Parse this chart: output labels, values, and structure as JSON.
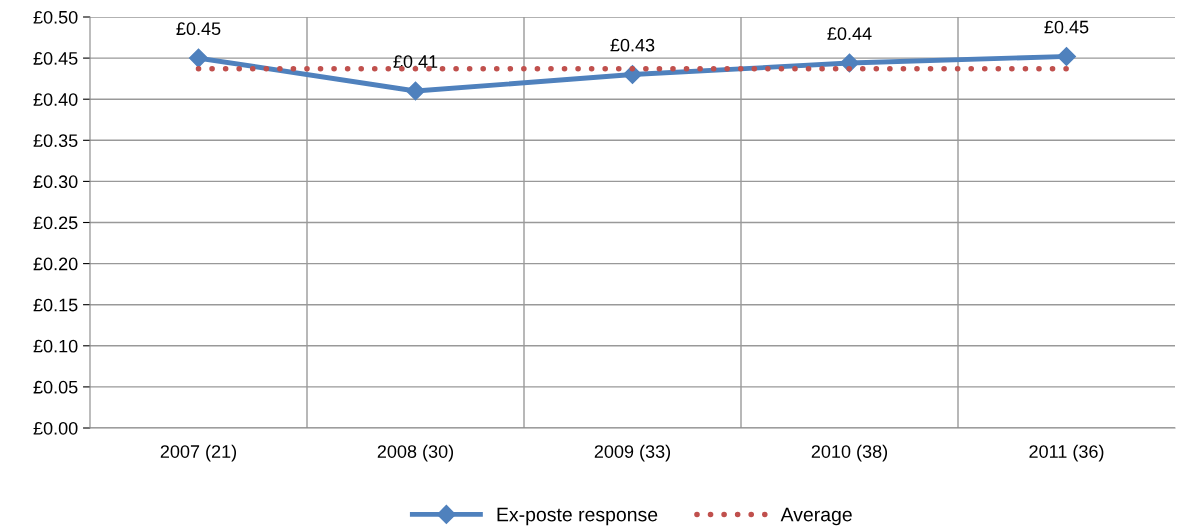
{
  "chart_data": {
    "type": "line",
    "categories": [
      "2007 (21)",
      "2008 (30)",
      "2009 (33)",
      "2010 (38)",
      "2011 (36)"
    ],
    "series": [
      {
        "name": "Ex-poste response",
        "color": "#4f81bd",
        "values": [
          0.45,
          0.41,
          0.43,
          0.444,
          0.452
        ],
        "value_labels": [
          "£0.45",
          "£0.41",
          "£0.43",
          "£0.44",
          "£0.45"
        ],
        "marker": "diamond",
        "line_style": "solid"
      },
      {
        "name": "Average",
        "color": "#c0504d",
        "values": [
          0.437,
          0.437,
          0.437,
          0.437,
          0.437
        ],
        "marker": "none",
        "line_style": "dotted"
      }
    ],
    "ylim": [
      0,
      0.5
    ],
    "yticks": [
      {
        "value": 0,
        "label": "£0.00"
      },
      {
        "value": 0.05,
        "label": "£0.05"
      },
      {
        "value": 0.1,
        "label": "£0.10"
      },
      {
        "value": 0.15,
        "label": "£0.15"
      },
      {
        "value": 0.2,
        "label": "£0.20"
      },
      {
        "value": 0.25,
        "label": "£0.25"
      },
      {
        "value": 0.3,
        "label": "£0.30"
      },
      {
        "value": 0.35,
        "label": "£0.35"
      },
      {
        "value": 0.4,
        "label": "£0.40"
      },
      {
        "value": 0.45,
        "label": "£0.45"
      },
      {
        "value": 0.5,
        "label": "£0.50"
      }
    ],
    "grid": true,
    "legend": "bottom"
  }
}
